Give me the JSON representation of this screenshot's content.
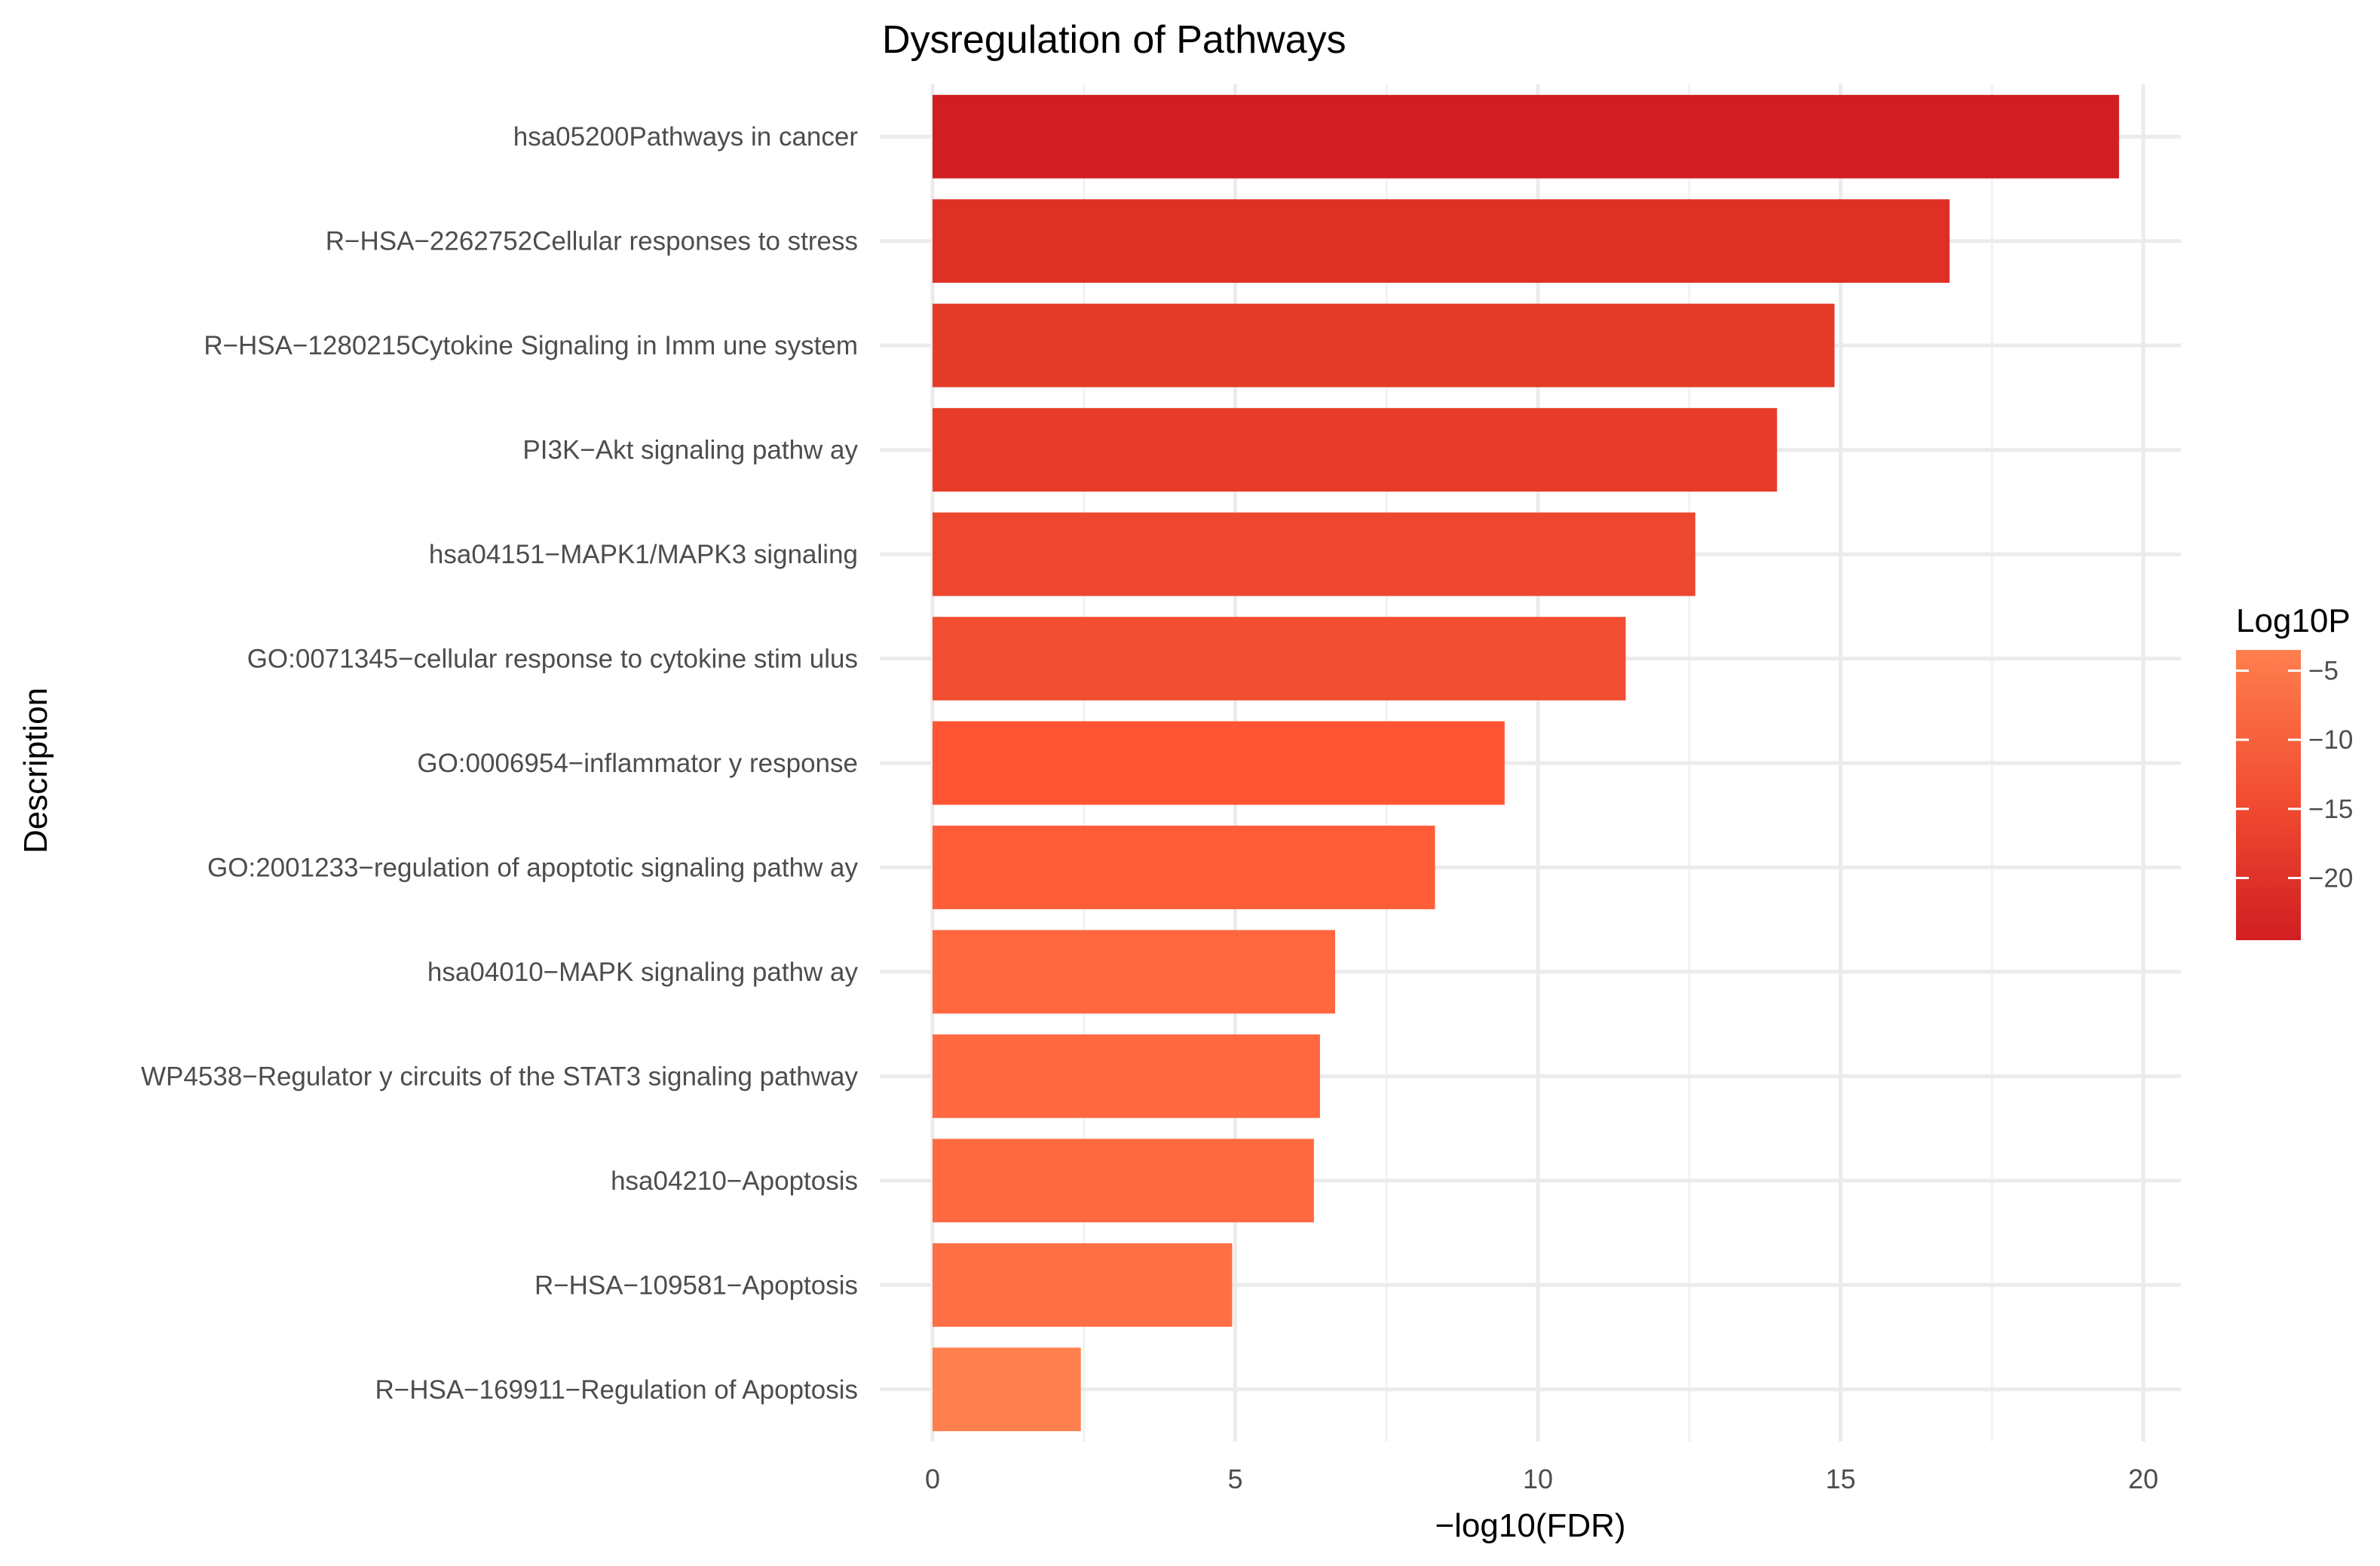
{
  "chart_data": {
    "type": "bar",
    "orientation": "horizontal",
    "title": "Dysregulation of Pathways",
    "xlabel": "−log10(FDR)",
    "ylabel": "Description",
    "xlim": [
      -0.75,
      20.6
    ],
    "x_ticks": [
      0,
      5,
      10,
      15,
      20
    ],
    "grid": true,
    "legend": {
      "title": "Log10P",
      "position": "right",
      "range": [
        -24.5,
        -3.5
      ],
      "ticks": [
        -5,
        -10,
        -15,
        -20
      ],
      "color_low": "#d11e22",
      "color_high": "#ff7f4f"
    },
    "categories": [
      "hsa05200Pathways in cancer",
      "R−HSA−2262752Cellular responses to stress",
      "R−HSA−1280215Cytokine Signaling in Imm une system",
      "PI3K−Akt signaling pathw ay",
      "hsa04151−MAPK1/MAPK3 signaling",
      "GO:0071345−cellular response to cytokine stim ulus",
      "GO:0006954−inflammator y response",
      "GO:2001233−regulation of apoptotic signaling pathw ay",
      "hsa04010−MAPK signaling pathw ay",
      "WP4538−Regulator y circuits of the STAT3 signaling pathway",
      "hsa04210−Apoptosis",
      "R−HSA−109581−Apoptosis",
      "R−HSA−169911−Regulation of Apoptosis"
    ],
    "values": [
      19.6,
      16.8,
      14.9,
      13.95,
      12.6,
      11.45,
      9.45,
      8.3,
      6.65,
      6.4,
      6.3,
      4.95,
      2.45
    ],
    "colors": [
      "#d11e22",
      "#df3025",
      "#e53b29",
      "#e73c2a",
      "#ee472f",
      "#f24e32",
      "#ff5534",
      "#ff5d38",
      "#ff673f",
      "#ff6840",
      "#ff6940",
      "#ff6f45",
      "#ff7f4f"
    ]
  }
}
